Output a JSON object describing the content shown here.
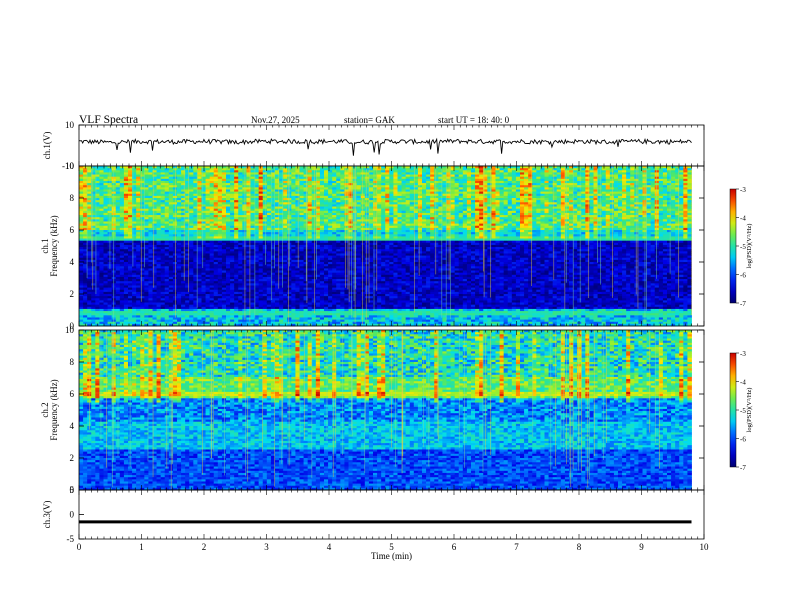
{
  "header": {
    "title": "VLF  Spectra",
    "date": "Nov.27, 2025",
    "station": "station= GAK",
    "start_ut": "start  UT  =   18: 40: 0"
  },
  "chart_data": [
    {
      "type": "line",
      "panel": "ch1-waveform",
      "ylabel": "ch.1(V)",
      "ylim": [
        -10,
        10
      ],
      "yticks": [
        "10",
        "-10"
      ],
      "description_points": "noisy trace around +2 V",
      "x": [
        0,
        0.5,
        1,
        1.5,
        2,
        2.5,
        3,
        3.5,
        4,
        4.5,
        5,
        5.5,
        6,
        6.5,
        7,
        7.5,
        8,
        8.5,
        9,
        9.5,
        9.8
      ],
      "values": [
        2,
        1.5,
        2,
        1.8,
        2,
        1.6,
        2.1,
        1.9,
        2,
        1.7,
        2,
        1.8,
        2.1,
        1.9,
        2,
        1.8,
        2,
        1.7,
        2,
        1.8,
        1.9
      ]
    },
    {
      "type": "heatmap",
      "panel": "ch1-spectrogram",
      "ylabel": "Frequency  (kHz)",
      "channel_label": "ch.1",
      "ylim": [
        0,
        10
      ],
      "yticks": [
        "0",
        "2",
        "4",
        "6",
        "8",
        "10"
      ],
      "colorbar": {
        "label": "log(PSD)(V²/Hz)",
        "range": [
          -7,
          -3
        ],
        "ticks": [
          "-3",
          "-4",
          "-5",
          "-6",
          "-7"
        ]
      }
    },
    {
      "type": "heatmap",
      "panel": "ch2-spectrogram",
      "ylabel": "Frequency  (kHz)",
      "channel_label": "ch.2",
      "ylim": [
        0,
        10
      ],
      "yticks": [
        "0",
        "2",
        "4",
        "6",
        "8",
        "10"
      ],
      "colorbar": {
        "label": "log(PSD)(V²/Hz)",
        "range": [
          -7,
          -3
        ],
        "ticks": [
          "-3",
          "-4",
          "-5",
          "-6",
          "-7"
        ]
      }
    },
    {
      "type": "line",
      "panel": "ch3-waveform",
      "ylabel": "ch.3(V)",
      "ylim": [
        -5,
        5
      ],
      "yticks": [
        "5",
        "0",
        "-5"
      ],
      "x": [
        0,
        9.8
      ],
      "values": [
        -1.5,
        -1.5
      ]
    }
  ],
  "xaxis": {
    "label": "Time  (min)",
    "range": [
      0,
      10
    ],
    "ticks": [
      "0",
      "1",
      "2",
      "3",
      "4",
      "5",
      "6",
      "7",
      "8",
      "9",
      "10"
    ]
  }
}
